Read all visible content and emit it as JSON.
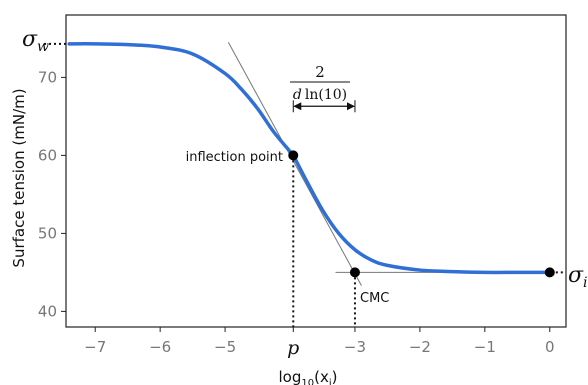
{
  "chart_data": {
    "type": "line",
    "title": "",
    "xlabel": "log10(xi)",
    "xlabel_main": "log",
    "xlabel_sub1": "10",
    "xlabel_paren_open": "(x",
    "xlabel_sub2": "i",
    "xlabel_paren_close": ")",
    "ylabel": "Surface tension (mN/m)",
    "xlim": [
      -7.45,
      0.25
    ],
    "ylim": [
      38,
      78
    ],
    "xticks": [
      {
        "value": -7,
        "label": "−7"
      },
      {
        "value": -6,
        "label": "−6"
      },
      {
        "value": -5,
        "label": "−5"
      },
      {
        "value": -3.95,
        "label": "p",
        "italic": true
      },
      {
        "value": -3,
        "label": "−3"
      },
      {
        "value": -2,
        "label": "−2"
      },
      {
        "value": -1,
        "label": "−1"
      },
      {
        "value": 0,
        "label": "0"
      }
    ],
    "yticks": [
      {
        "value": 40,
        "label": "40"
      },
      {
        "value": 50,
        "label": "50"
      },
      {
        "value": 60,
        "label": "60"
      },
      {
        "value": 70,
        "label": "70"
      }
    ],
    "grid": false,
    "series": [
      {
        "color": "#2f6fd6",
        "x": [
          -7.4,
          -7.0,
          -6.5,
          -6.0,
          -5.5,
          -5.0,
          -4.75,
          -4.5,
          -4.25,
          -4.0,
          -3.95,
          -3.75,
          -3.5,
          -3.25,
          -3.0,
          -2.75,
          -2.5,
          -2.0,
          -1.5,
          -1.0,
          -0.5,
          0.0
        ],
        "y": [
          74.3,
          74.3,
          74.2,
          73.9,
          73.0,
          70.5,
          68.5,
          66.0,
          63.0,
          60.5,
          60.0,
          56.8,
          53.0,
          50.0,
          47.9,
          46.6,
          45.9,
          45.3,
          45.1,
          45.0,
          45.0,
          45.0
        ]
      }
    ],
    "markers": [
      {
        "x": -3.95,
        "y": 60.0,
        "label": "inflection point"
      },
      {
        "x": -3.0,
        "y": 45.0,
        "label": "CMC"
      },
      {
        "x": 0.0,
        "y": 45.0,
        "label": ""
      }
    ],
    "tangent_line": {
      "x": [
        -4.95,
        -2.9
      ],
      "y": [
        74.5,
        43.3
      ],
      "color": "#777777"
    },
    "baseline_line": {
      "x": [
        -3.3,
        0.0
      ],
      "y": [
        45.0,
        45.0
      ],
      "color": "#777777"
    },
    "annotations": {
      "sigma_w": {
        "symbol": "σ",
        "sub": "w",
        "y": 74.3
      },
      "sigma_i": {
        "symbol": "σ",
        "sub": "i",
        "y": 45.0
      },
      "fraction": {
        "numerator": "2",
        "denominator_d": "d",
        "denominator_ln": "ln(10)",
        "x_from": -3.95,
        "x_to": -3.0,
        "arrow_y": 66.3
      }
    }
  }
}
